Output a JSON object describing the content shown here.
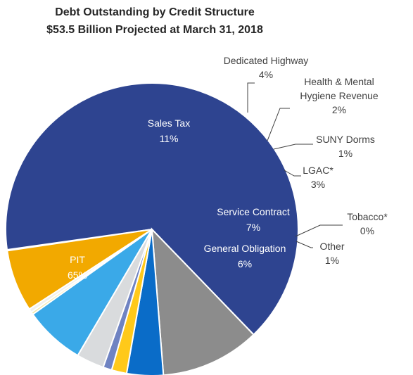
{
  "chart_data": {
    "type": "pie",
    "title": "Debt Outstanding by Credit Structure",
    "subtitle": "$53.5 Billion Projected at March 31, 2018",
    "slices": [
      {
        "label": "PIT",
        "value": 65,
        "value_label": "65%",
        "color": "#2E4490"
      },
      {
        "label": "Sales Tax",
        "value": 11,
        "value_label": "11%",
        "color": "#8C8C8C"
      },
      {
        "label": "Dedicated Highway",
        "value": 4,
        "value_label": "4%",
        "color": "#0A6CC8"
      },
      {
        "label": "Health & Mental Hygiene Revenue",
        "label_lines": [
          "Health & Mental",
          "Hygiene Revenue"
        ],
        "value": 2,
        "value_label": "2%",
        "color": "#FFC91A"
      },
      {
        "label": "SUNY Dorms",
        "value": 1,
        "value_label": "1%",
        "color": "#6F83C2"
      },
      {
        "label": "LGAC*",
        "value": 3,
        "value_label": "3%",
        "color": "#D9DBDD"
      },
      {
        "label": "Service Contract",
        "value": 7,
        "value_label": "7%",
        "color": "#3AA9E8"
      },
      {
        "label": "Tobacco*",
        "value": 0,
        "value_label": "0%",
        "color": "#F2E7A4"
      },
      {
        "label": "Other",
        "value": 1,
        "value_label": "1%",
        "color": "#F1F1EC"
      },
      {
        "label": "General Obligation",
        "value": 6,
        "value_label": "6%",
        "color": "#F2A900"
      }
    ]
  }
}
